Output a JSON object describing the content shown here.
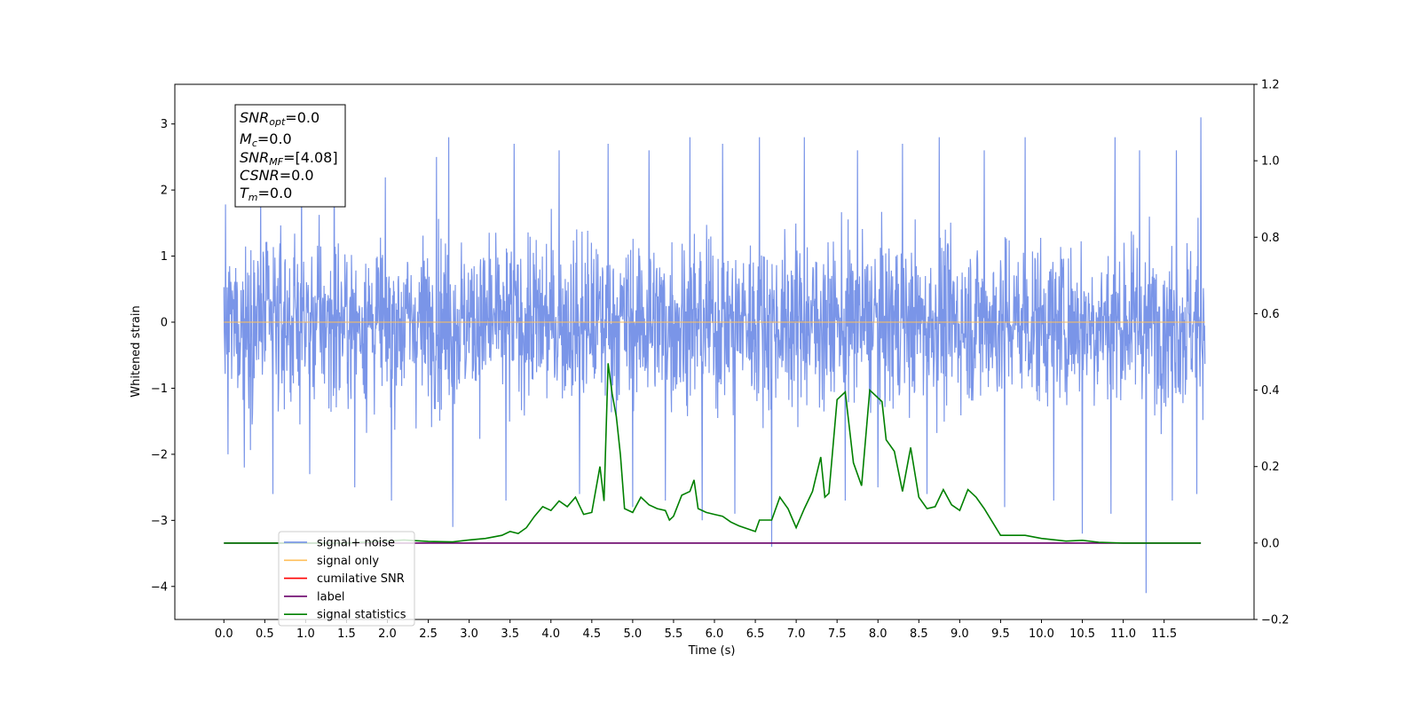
{
  "chart_data": {
    "type": "line",
    "xlabel": "Time (s)",
    "ylabel": "Whitened strain",
    "xlim": [
      -0.6,
      12.6
    ],
    "ylim": [
      -4.5,
      3.6
    ],
    "y2lim": [
      -0.2,
      1.2
    ],
    "x_ticks": [
      "0.0",
      "0.5",
      "1.0",
      "1.5",
      "2.0",
      "2.5",
      "3.0",
      "3.5",
      "4.0",
      "4.5",
      "5.0",
      "5.5",
      "6.0",
      "6.5",
      "7.0",
      "7.5",
      "8.0",
      "8.5",
      "9.0",
      "9.5",
      "10.0",
      "10.5",
      "11.0",
      "11.5"
    ],
    "y_ticks": [
      "−4",
      "−3",
      "−2",
      "−1",
      "0",
      "1",
      "2",
      "3"
    ],
    "y2_ticks": [
      "−0.2",
      "0.0",
      "0.2",
      "0.4",
      "0.6",
      "0.8",
      "1.0",
      "1.2"
    ],
    "legend_position": "lower-left",
    "series": [
      {
        "name": "signal+ noise",
        "color": "#6b8ae6",
        "axis": "left",
        "x_range": [
          0.0,
          12.0
        ],
        "typical_amplitude": [
          -1.6,
          1.6
        ],
        "peaks": [
          [
            0.05,
            1.8
          ],
          [
            0.45,
            2.0
          ],
          [
            0.95,
            2.4
          ],
          [
            1.35,
            2.8
          ],
          [
            2.05,
            2.9
          ],
          [
            2.6,
            2.5
          ],
          [
            2.75,
            2.8
          ],
          [
            3.55,
            2.7
          ],
          [
            4.1,
            2.6
          ],
          [
            4.7,
            2.7
          ],
          [
            5.2,
            2.6
          ],
          [
            5.7,
            2.8
          ],
          [
            6.1,
            2.7
          ],
          [
            6.55,
            2.8
          ],
          [
            7.1,
            2.8
          ],
          [
            7.75,
            2.6
          ],
          [
            8.3,
            2.7
          ],
          [
            8.75,
            2.8
          ],
          [
            9.3,
            2.6
          ],
          [
            9.8,
            2.8
          ],
          [
            10.5,
            3.2
          ],
          [
            10.9,
            2.8
          ],
          [
            11.2,
            2.6
          ],
          [
            11.65,
            2.6
          ],
          [
            11.95,
            3.1
          ]
        ],
        "troughs": [
          [
            0.05,
            -2.0
          ],
          [
            0.25,
            -2.2
          ],
          [
            0.6,
            -2.6
          ],
          [
            1.05,
            -2.3
          ],
          [
            1.6,
            -2.5
          ],
          [
            2.05,
            -2.7
          ],
          [
            2.8,
            -3.1
          ],
          [
            3.45,
            -2.7
          ],
          [
            4.35,
            -2.6
          ],
          [
            5.0,
            -2.8
          ],
          [
            5.4,
            -2.7
          ],
          [
            5.85,
            -3.0
          ],
          [
            6.25,
            -2.9
          ],
          [
            6.7,
            -3.4
          ],
          [
            7.6,
            -2.7
          ],
          [
            8.0,
            -2.5
          ],
          [
            8.6,
            -2.6
          ],
          [
            9.55,
            -2.8
          ],
          [
            10.15,
            -2.7
          ],
          [
            10.5,
            -3.2
          ],
          [
            10.85,
            -2.9
          ],
          [
            11.28,
            -4.1
          ],
          [
            11.6,
            -2.7
          ],
          [
            11.9,
            -2.6
          ]
        ]
      },
      {
        "name": "signal only",
        "color": "#ffbf5a",
        "axis": "left",
        "x": [
          0.0,
          12.0
        ],
        "y": [
          0.0,
          0.0
        ]
      },
      {
        "name": "cumilative SNR",
        "color": "#ff0000",
        "axis": "right",
        "x": [],
        "y": []
      },
      {
        "name": "label",
        "color": "#6a006a",
        "axis": "right",
        "x": [
          0.0,
          11.95
        ],
        "y": [
          0.0,
          0.0
        ]
      },
      {
        "name": "signal statistics",
        "color": "#008000",
        "axis": "right",
        "x": [
          0.0,
          0.5,
          1.0,
          1.5,
          2.0,
          2.2,
          2.5,
          2.8,
          3.0,
          3.2,
          3.4,
          3.5,
          3.6,
          3.7,
          3.8,
          3.9,
          4.0,
          4.1,
          4.2,
          4.3,
          4.4,
          4.5,
          4.6,
          4.65,
          4.7,
          4.75,
          4.8,
          4.85,
          4.9,
          5.0,
          5.1,
          5.2,
          5.3,
          5.4,
          5.45,
          5.5,
          5.6,
          5.7,
          5.75,
          5.8,
          5.9,
          6.0,
          6.1,
          6.2,
          6.3,
          6.5,
          6.55,
          6.7,
          6.8,
          6.9,
          7.0,
          7.1,
          7.2,
          7.3,
          7.35,
          7.4,
          7.5,
          7.6,
          7.7,
          7.8,
          7.9,
          8.0,
          8.05,
          8.1,
          8.2,
          8.3,
          8.4,
          8.5,
          8.6,
          8.7,
          8.8,
          8.9,
          9.0,
          9.1,
          9.2,
          9.3,
          9.5,
          9.6,
          9.8,
          10.0,
          10.3,
          10.5,
          10.7,
          11.0,
          11.5,
          11.95
        ],
        "y": [
          0.0,
          0.0,
          0.0,
          0.0,
          0.005,
          0.008,
          0.004,
          0.003,
          0.008,
          0.012,
          0.02,
          0.03,
          0.025,
          0.04,
          0.07,
          0.095,
          0.085,
          0.11,
          0.095,
          0.12,
          0.075,
          0.08,
          0.2,
          0.11,
          0.47,
          0.39,
          0.33,
          0.23,
          0.09,
          0.08,
          0.12,
          0.1,
          0.09,
          0.085,
          0.06,
          0.07,
          0.125,
          0.135,
          0.165,
          0.09,
          0.08,
          0.075,
          0.07,
          0.055,
          0.045,
          0.03,
          0.06,
          0.06,
          0.12,
          0.09,
          0.04,
          0.09,
          0.135,
          0.225,
          0.12,
          0.13,
          0.375,
          0.395,
          0.21,
          0.15,
          0.4,
          0.38,
          0.37,
          0.27,
          0.24,
          0.135,
          0.25,
          0.12,
          0.09,
          0.095,
          0.14,
          0.1,
          0.085,
          0.14,
          0.12,
          0.09,
          0.02,
          0.02,
          0.02,
          0.012,
          0.005,
          0.007,
          0.002,
          0.0,
          0.0,
          0.0
        ]
      }
    ]
  },
  "info_box": {
    "lines": [
      {
        "var": "SNR",
        "sub": "opt",
        "value": "=0.0"
      },
      {
        "var": "M",
        "sub": "c",
        "value": "=0.0"
      },
      {
        "var": "SNR",
        "sub": "MF",
        "value": "=[4.08]"
      },
      {
        "var": "CSNR",
        "sub": "",
        "value": "=0.0"
      },
      {
        "var": "T",
        "sub": "m",
        "value": "=0.0"
      }
    ]
  }
}
